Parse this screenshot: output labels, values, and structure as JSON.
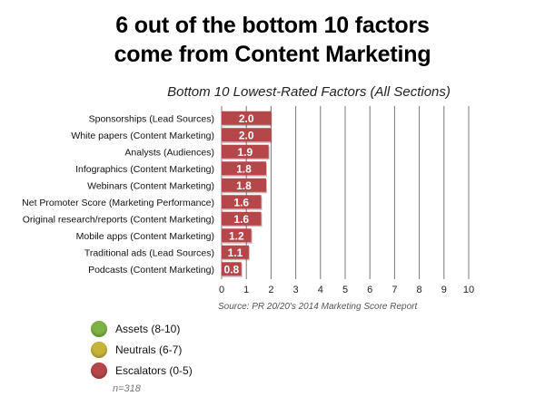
{
  "headline": {
    "line1": "6 out of the bottom 10 factors",
    "line2": "come from Content Marketing"
  },
  "source": "Source: PR 20/20's 2014 Marketing Score Report",
  "note": "n=318",
  "legend": [
    {
      "label": "Assets (8-10)",
      "color": "#7cb342"
    },
    {
      "label": "Neutrals (6-7)",
      "color": "#c9b43a"
    },
    {
      "label": "Escalators (0-5)",
      "color": "#b5474a"
    }
  ],
  "chart_data": {
    "type": "bar",
    "orientation": "horizontal",
    "title": "Bottom 10 Lowest-Rated Factors (All Sections)",
    "categories": [
      "Sponsorships (Lead Sources)",
      "White papers (Content Marketing)",
      "Analysts (Audiences)",
      "Infographics (Content Marketing)",
      "Webinars (Content Marketing)",
      "Net Promoter Score (Marketing Performance)",
      "Original research/reports (Content Marketing)",
      "Mobile apps (Content Marketing)",
      "Traditional ads (Lead Sources)",
      "Podcasts (Content Marketing)"
    ],
    "values": [
      2.0,
      2.0,
      1.9,
      1.8,
      1.8,
      1.6,
      1.6,
      1.2,
      1.1,
      0.8
    ],
    "data_labels": [
      "2.0",
      "2.0",
      "1.9",
      "1.8",
      "1.8",
      "1.6",
      "1.6",
      "1.2",
      "1.1",
      "0.8"
    ],
    "xlim": [
      0,
      10
    ],
    "xticks": [
      "0",
      "1",
      "2",
      "3",
      "4",
      "5",
      "6",
      "7",
      "8",
      "9",
      "10"
    ],
    "grid": true,
    "bar_color": "#b5474a"
  }
}
